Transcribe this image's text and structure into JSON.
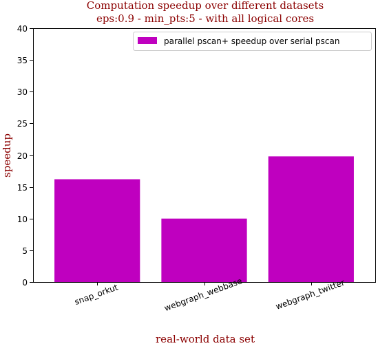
{
  "chart_data": {
    "type": "bar",
    "title": "Computation speedup over different datasets",
    "subtitle": "eps:0.9 - min_pts:5 - with all logical cores",
    "xlabel": "real-world data set",
    "ylabel": "speedup",
    "categories": [
      "snap_orkut",
      "webgraph_webbase",
      "webgraph_twitter"
    ],
    "series": [
      {
        "name": "parallel pscan+ speedup over serial pscan",
        "values": [
          16.2,
          10.0,
          19.8
        ],
        "color": "#bf00bf"
      }
    ],
    "ylim": [
      0,
      40
    ],
    "yticks": [
      0,
      5,
      10,
      15,
      20,
      25,
      30,
      35,
      40
    ],
    "grid": false,
    "legend_position": "top-right",
    "colors": {
      "title": "#8b0000",
      "bar": "#bf00bf"
    }
  }
}
